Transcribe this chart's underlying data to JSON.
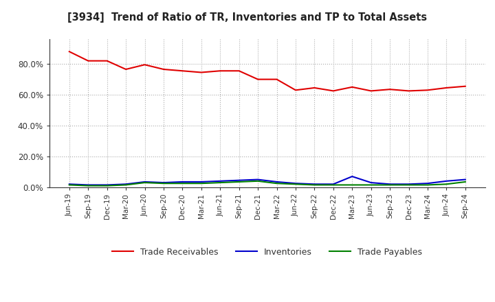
{
  "title": "[3934]  Trend of Ratio of TR, Inventories and TP to Total Assets",
  "x_labels": [
    "Jun-19",
    "Sep-19",
    "Dec-19",
    "Mar-20",
    "Jun-20",
    "Sep-20",
    "Dec-20",
    "Mar-21",
    "Jun-21",
    "Sep-21",
    "Dec-21",
    "Mar-22",
    "Jun-22",
    "Sep-22",
    "Dec-22",
    "Mar-23",
    "Jun-23",
    "Sep-23",
    "Dec-23",
    "Mar-24",
    "Jun-24",
    "Sep-24"
  ],
  "trade_receivables": [
    88.0,
    82.0,
    82.0,
    76.5,
    79.5,
    76.5,
    75.5,
    74.5,
    75.5,
    75.5,
    70.0,
    70.0,
    63.0,
    64.5,
    62.5,
    65.0,
    62.5,
    63.5,
    62.5,
    63.0,
    64.5,
    65.5
  ],
  "inventories": [
    2.0,
    1.5,
    1.5,
    2.0,
    3.5,
    3.0,
    3.5,
    3.5,
    4.0,
    4.5,
    5.0,
    3.5,
    2.5,
    2.0,
    2.0,
    7.0,
    3.0,
    2.0,
    2.0,
    2.5,
    4.0,
    5.0
  ],
  "trade_payables": [
    1.5,
    1.0,
    1.0,
    1.5,
    3.0,
    2.5,
    2.5,
    2.5,
    3.0,
    3.5,
    4.0,
    2.5,
    2.0,
    1.5,
    1.5,
    1.5,
    1.5,
    1.5,
    1.5,
    1.5,
    2.0,
    3.5
  ],
  "color_tr": "#e00000",
  "color_inv": "#0000cc",
  "color_tp": "#008000",
  "ylim": [
    0,
    96
  ],
  "yticks": [
    0,
    20,
    40,
    60,
    80
  ],
  "ytick_labels": [
    "0.0%",
    "20.0%",
    "40.0%",
    "60.0%",
    "80.0%"
  ],
  "background_color": "#ffffff",
  "plot_bg_color": "#ffffff",
  "grid_color": "#aaaaaa",
  "legend_labels": [
    "Trade Receivables",
    "Inventories",
    "Trade Payables"
  ]
}
